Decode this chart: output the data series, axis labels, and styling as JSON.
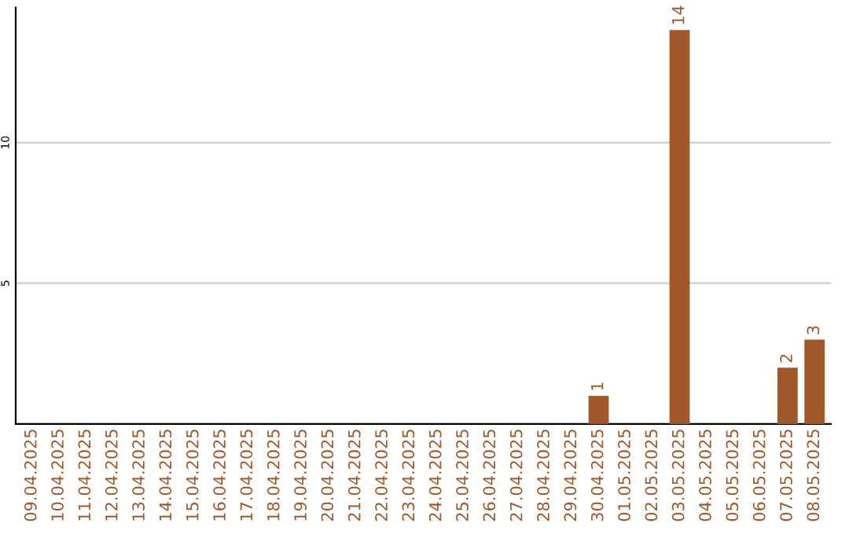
{
  "chart_data": {
    "type": "bar",
    "categories": [
      "09.04.2025",
      "10.04.2025",
      "11.04.2025",
      "12.04.2025",
      "13.04.2025",
      "14.04.2025",
      "15.04.2025",
      "16.04.2025",
      "17.04.2025",
      "18.04.2025",
      "19.04.2025",
      "20.04.2025",
      "21.04.2025",
      "22.04.2025",
      "23.04.2025",
      "24.04.2025",
      "25.04.2025",
      "26.04.2025",
      "27.04.2025",
      "28.04.2025",
      "29.04.2025",
      "30.04.2025",
      "01.05.2025",
      "02.05.2025",
      "03.05.2025",
      "04.05.2025",
      "05.05.2025",
      "06.05.2025",
      "07.05.2025",
      "08.05.2025"
    ],
    "values": [
      0,
      0,
      0,
      0,
      0,
      0,
      0,
      0,
      0,
      0,
      0,
      0,
      0,
      0,
      0,
      0,
      0,
      0,
      0,
      0,
      0,
      1,
      0,
      0,
      14,
      0,
      0,
      0,
      2,
      3
    ],
    "value_labels": [
      null,
      null,
      null,
      null,
      null,
      null,
      null,
      null,
      null,
      null,
      null,
      null,
      null,
      null,
      null,
      null,
      null,
      null,
      null,
      null,
      null,
      "1",
      null,
      null,
      "14",
      null,
      null,
      null,
      "2",
      "3"
    ],
    "color": "#a0582b",
    "ylim": [
      0,
      14.8
    ],
    "yticks": [
      5,
      10
    ],
    "grid": "y"
  }
}
